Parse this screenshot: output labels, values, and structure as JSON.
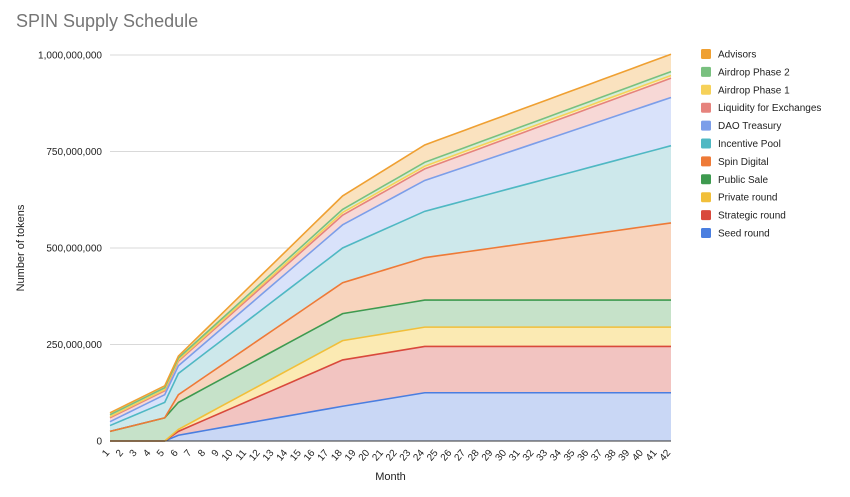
{
  "chart_data": {
    "type": "area",
    "stacked": true,
    "title": "SPIN Supply Schedule",
    "xlabel": "Month",
    "ylabel": "Number of tokens",
    "ylim": [
      0,
      1000000000
    ],
    "yticks": [
      0,
      250000000,
      500000000,
      750000000,
      1000000000
    ],
    "ytick_labels": [
      "0",
      "250,000,000",
      "500,000,000",
      "750,000,000",
      "1,000,000,000"
    ],
    "grid": true,
    "legend_position": "right",
    "x": [
      "1",
      "2",
      "3",
      "4",
      "5",
      "6",
      "7",
      "8",
      "9",
      "10",
      "11",
      "12",
      "13",
      "14",
      "15",
      "16",
      "17",
      "18",
      "19",
      "20",
      "21",
      "22",
      "23",
      "24",
      "25",
      "26",
      "27",
      "28",
      "29",
      "30",
      "31",
      "32",
      "33",
      "34",
      "35",
      "36",
      "37",
      "38",
      "39",
      "40",
      "41",
      "42"
    ],
    "series": [
      {
        "name": "Seed round",
        "color": "#4a7ee0",
        "fill": "#c9d7f5",
        "points": [
          [
            1,
            0
          ],
          [
            5,
            0
          ],
          [
            6,
            15000000
          ],
          [
            18,
            90000000
          ],
          [
            24,
            125000000
          ],
          [
            42,
            125000000
          ]
        ]
      },
      {
        "name": "Strategic round",
        "color": "#d9493c",
        "fill": "#f2c4c1",
        "points": [
          [
            1,
            0
          ],
          [
            5,
            0
          ],
          [
            6,
            10000000
          ],
          [
            18,
            120000000
          ],
          [
            24,
            120000000
          ],
          [
            42,
            120000000
          ]
        ]
      },
      {
        "name": "Private round",
        "color": "#f1bf3a",
        "fill": "#fbeab3",
        "points": [
          [
            1,
            0
          ],
          [
            5,
            0
          ],
          [
            6,
            5000000
          ],
          [
            18,
            50000000
          ],
          [
            24,
            50000000
          ],
          [
            42,
            50000000
          ]
        ]
      },
      {
        "name": "Public Sale",
        "color": "#3e9a4f",
        "fill": "#c6e2c9",
        "points": [
          [
            1,
            25000000
          ],
          [
            5,
            60000000
          ],
          [
            6,
            70000000
          ],
          [
            18,
            70000000
          ],
          [
            24,
            70000000
          ],
          [
            42,
            70000000
          ]
        ]
      },
      {
        "name": "Spin Digital",
        "color": "#ee7a37",
        "fill": "#f8d4bd",
        "points": [
          [
            1,
            0
          ],
          [
            5,
            0
          ],
          [
            6,
            20000000
          ],
          [
            18,
            80000000
          ],
          [
            24,
            110000000
          ],
          [
            42,
            200000000
          ]
        ]
      },
      {
        "name": "Incentive Pool",
        "color": "#4fb8c3",
        "fill": "#cde8eb",
        "points": [
          [
            1,
            15000000
          ],
          [
            5,
            40000000
          ],
          [
            6,
            55000000
          ],
          [
            18,
            90000000
          ],
          [
            24,
            120000000
          ],
          [
            42,
            200000000
          ]
        ]
      },
      {
        "name": "DAO Treasury",
        "color": "#7c9ee9",
        "fill": "#d9e2fa",
        "points": [
          [
            1,
            10000000
          ],
          [
            5,
            20000000
          ],
          [
            6,
            20000000
          ],
          [
            18,
            60000000
          ],
          [
            24,
            80000000
          ],
          [
            42,
            125000000
          ]
        ]
      },
      {
        "name": "Liquidity for Exchanges",
        "color": "#e6837d",
        "fill": "#f7d8d6",
        "points": [
          [
            1,
            10000000
          ],
          [
            5,
            10000000
          ],
          [
            6,
            12000000
          ],
          [
            18,
            25000000
          ],
          [
            24,
            30000000
          ],
          [
            42,
            50000000
          ]
        ]
      },
      {
        "name": "Airdrop Phase 1",
        "color": "#f6d159",
        "fill": "#fcefc0",
        "points": [
          [
            1,
            3000000
          ],
          [
            5,
            3000000
          ],
          [
            6,
            3000000
          ],
          [
            18,
            7000000
          ],
          [
            24,
            7000000
          ],
          [
            42,
            7000000
          ]
        ]
      },
      {
        "name": "Airdrop Phase 2",
        "color": "#79c07f",
        "fill": "#d7edd8",
        "points": [
          [
            1,
            5000000
          ],
          [
            5,
            5000000
          ],
          [
            6,
            5000000
          ],
          [
            18,
            8000000
          ],
          [
            24,
            10000000
          ],
          [
            42,
            10000000
          ]
        ]
      },
      {
        "name": "Advisors",
        "color": "#efa032",
        "fill": "#fae2bf",
        "points": [
          [
            1,
            5000000
          ],
          [
            5,
            5000000
          ],
          [
            6,
            5000000
          ],
          [
            18,
            35000000
          ],
          [
            24,
            45000000
          ],
          [
            42,
            45000000
          ]
        ]
      }
    ],
    "legend_order": [
      "Advisors",
      "Airdrop Phase 2",
      "Airdrop Phase 1",
      "Liquidity for Exchanges",
      "DAO Treasury",
      "Incentive Pool",
      "Spin Digital",
      "Public Sale",
      "Private round",
      "Strategic round",
      "Seed round"
    ]
  }
}
